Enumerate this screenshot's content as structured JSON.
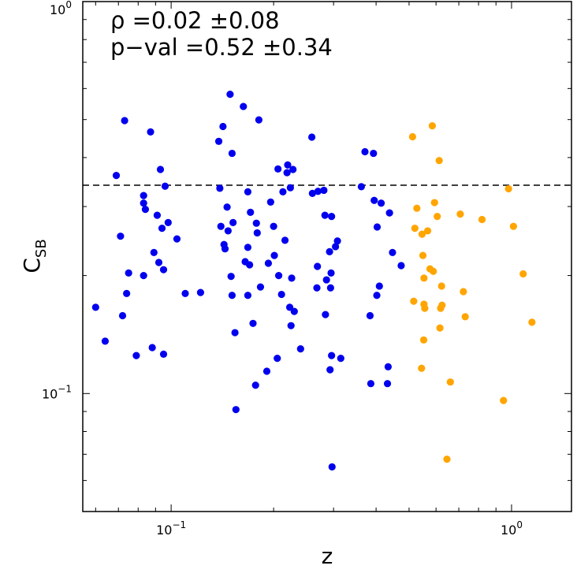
{
  "chart_data": {
    "type": "scatter",
    "xlabel": "z",
    "ylabel": {
      "base": "C",
      "subscript": "SB"
    },
    "xscale": "log",
    "yscale": "log",
    "xlim": [
      0.055,
      1.5
    ],
    "ylim": [
      0.05,
      1.0
    ],
    "xticks": [
      {
        "value": 0.1,
        "base": "10",
        "exp": "−1"
      },
      {
        "value": 1.0,
        "base": "10",
        "exp": "0"
      }
    ],
    "yticks": [
      {
        "value": 0.1,
        "base": "10",
        "exp": "−1"
      },
      {
        "value": 1.0,
        "base": "10",
        "exp": "0"
      }
    ],
    "annotations": [
      "ρ =0.02 ±0.08",
      "p−val =0.52 ±0.34"
    ],
    "reference_line": {
      "y": 0.34,
      "style": "dashed",
      "color": "#000000"
    },
    "series": [
      {
        "color": "#0000ee",
        "points": [
          [
            0.06,
            0.166
          ],
          [
            0.064,
            0.136
          ],
          [
            0.069,
            0.36
          ],
          [
            0.071,
            0.252
          ],
          [
            0.072,
            0.158
          ],
          [
            0.073,
            0.497
          ],
          [
            0.074,
            0.18
          ],
          [
            0.075,
            0.203
          ],
          [
            0.079,
            0.125
          ],
          [
            0.083,
            0.2
          ],
          [
            0.083,
            0.32
          ],
          [
            0.083,
            0.306
          ],
          [
            0.084,
            0.295
          ],
          [
            0.087,
            0.465
          ],
          [
            0.088,
            0.131
          ],
          [
            0.089,
            0.229
          ],
          [
            0.091,
            0.285
          ],
          [
            0.092,
            0.216
          ],
          [
            0.093,
            0.373
          ],
          [
            0.094,
            0.264
          ],
          [
            0.095,
            0.207
          ],
          [
            0.095,
            0.126
          ],
          [
            0.096,
            0.338
          ],
          [
            0.098,
            0.273
          ],
          [
            0.104,
            0.248
          ],
          [
            0.11,
            0.18
          ],
          [
            0.122,
            0.181
          ],
          [
            0.138,
            0.44
          ],
          [
            0.139,
            0.334
          ],
          [
            0.14,
            0.267
          ],
          [
            0.142,
            0.48
          ],
          [
            0.143,
            0.24
          ],
          [
            0.144,
            0.234
          ],
          [
            0.146,
            0.299
          ],
          [
            0.147,
            0.26
          ],
          [
            0.149,
            0.58
          ],
          [
            0.15,
            0.199
          ],
          [
            0.151,
            0.41
          ],
          [
            0.151,
            0.178
          ],
          [
            0.152,
            0.273
          ],
          [
            0.154,
            0.143
          ],
          [
            0.155,
            0.091
          ],
          [
            0.163,
            0.54
          ],
          [
            0.165,
            0.217
          ],
          [
            0.168,
            0.178
          ],
          [
            0.168,
            0.236
          ],
          [
            0.168,
            0.327
          ],
          [
            0.17,
            0.213
          ],
          [
            0.171,
            0.29
          ],
          [
            0.174,
            0.151
          ],
          [
            0.177,
            0.105
          ],
          [
            0.178,
            0.272
          ],
          [
            0.179,
            0.257
          ],
          [
            0.181,
            0.499
          ],
          [
            0.183,
            0.187
          ],
          [
            0.191,
            0.114
          ],
          [
            0.193,
            0.215
          ],
          [
            0.196,
            0.308
          ],
          [
            0.2,
            0.267
          ],
          [
            0.201,
            0.225
          ],
          [
            0.205,
            0.123
          ],
          [
            0.206,
            0.374
          ],
          [
            0.207,
            0.2
          ],
          [
            0.211,
            0.179
          ],
          [
            0.213,
            0.327
          ],
          [
            0.216,
            0.246
          ],
          [
            0.219,
            0.366
          ],
          [
            0.22,
            0.383
          ],
          [
            0.223,
            0.166
          ],
          [
            0.224,
            0.335
          ],
          [
            0.225,
            0.149
          ],
          [
            0.226,
            0.197
          ],
          [
            0.228,
            0.373
          ],
          [
            0.23,
            0.162
          ],
          [
            0.24,
            0.13
          ],
          [
            0.259,
            0.451
          ],
          [
            0.26,
            0.324
          ],
          [
            0.268,
            0.186
          ],
          [
            0.269,
            0.211
          ],
          [
            0.27,
            0.328
          ],
          [
            0.281,
            0.33
          ],
          [
            0.283,
            0.285
          ],
          [
            0.284,
            0.159
          ],
          [
            0.286,
            0.195
          ],
          [
            0.292,
            0.23
          ],
          [
            0.293,
            0.115
          ],
          [
            0.294,
            0.186
          ],
          [
            0.295,
            0.203
          ],
          [
            0.296,
            0.283
          ],
          [
            0.296,
            0.125
          ],
          [
            0.297,
            0.065
          ],
          [
            0.304,
            0.237
          ],
          [
            0.308,
            0.245
          ],
          [
            0.315,
            0.123
          ],
          [
            0.362,
            0.337
          ],
          [
            0.371,
            0.414
          ],
          [
            0.384,
            0.158
          ],
          [
            0.386,
            0.106
          ],
          [
            0.393,
            0.41
          ],
          [
            0.395,
            0.311
          ],
          [
            0.402,
            0.178
          ],
          [
            0.403,
            0.266
          ],
          [
            0.409,
            0.188
          ],
          [
            0.414,
            0.306
          ],
          [
            0.432,
            0.106
          ],
          [
            0.434,
            0.117
          ],
          [
            0.438,
            0.289
          ],
          [
            0.447,
            0.229
          ],
          [
            0.474,
            0.212
          ]
        ]
      },
      {
        "color": "#ffa500",
        "points": [
          [
            0.512,
            0.452
          ],
          [
            0.516,
            0.172
          ],
          [
            0.52,
            0.264
          ],
          [
            0.527,
            0.297
          ],
          [
            0.544,
            0.116
          ],
          [
            0.546,
            0.255
          ],
          [
            0.549,
            0.225
          ],
          [
            0.552,
            0.137
          ],
          [
            0.553,
            0.197
          ],
          [
            0.553,
            0.169
          ],
          [
            0.556,
            0.165
          ],
          [
            0.567,
            0.26
          ],
          [
            0.576,
            0.208
          ],
          [
            0.585,
            0.482
          ],
          [
            0.589,
            0.205
          ],
          [
            0.594,
            0.307
          ],
          [
            0.605,
            0.283
          ],
          [
            0.613,
            0.393
          ],
          [
            0.616,
            0.147
          ],
          [
            0.619,
            0.165
          ],
          [
            0.623,
            0.188
          ],
          [
            0.625,
            0.168
          ],
          [
            0.646,
            0.068
          ],
          [
            0.661,
            0.107
          ],
          [
            0.707,
            0.287
          ],
          [
            0.722,
            0.182
          ],
          [
            0.731,
            0.157
          ],
          [
            0.819,
            0.278
          ],
          [
            0.947,
            0.096
          ],
          [
            0.98,
            0.333
          ],
          [
            1.013,
            0.267
          ],
          [
            1.082,
            0.202
          ],
          [
            1.148,
            0.152
          ]
        ]
      }
    ]
  }
}
